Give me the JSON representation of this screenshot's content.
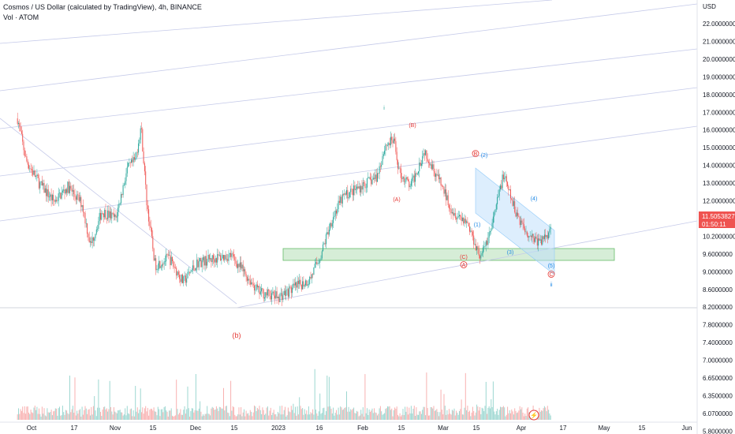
{
  "header": {
    "title": "Cosmos / US Dollar (calculated by TradingView), 4h, BINANCE",
    "volume_label": "Vol · ATOM"
  },
  "currency": "USD",
  "price_badge": {
    "price": "11.5053827",
    "countdown": "01:50:11",
    "color": "#ef5350"
  },
  "colors": {
    "up": "#26a69a",
    "down": "#ef5350",
    "channel": "#c5cae9",
    "zone": "#a5d6a7",
    "wave_red": "#e53935",
    "wave_blue": "#1e88e5"
  },
  "chart_data": {
    "type": "candlestick",
    "price_axis_labels": [
      "22.0000000",
      "21.0000000",
      "20.0000000",
      "19.0000000",
      "18.0000000",
      "17.0000000",
      "16.0000000",
      "15.0000000",
      "14.0000000",
      "13.0000000",
      "12.0000000",
      "10.8000000",
      "10.2000000",
      "9.6000000",
      "9.0000000",
      "8.6000000",
      "8.2000000",
      "7.8000000",
      "7.4000000",
      "7.0000000",
      "6.6500000",
      "6.3500000",
      "6.0700000",
      "5.8000000"
    ],
    "time_axis_labels": [
      "Oct",
      "17",
      "Nov",
      "15",
      "Dec",
      "15",
      "2023",
      "16",
      "Feb",
      "15",
      "Mar",
      "15",
      "Apr",
      "17",
      "May",
      "15",
      "Jun"
    ],
    "wave_labels": [
      {
        "text": "i",
        "color": "#26a69a"
      },
      {
        "text": "(B)",
        "color": "#e53935"
      },
      {
        "text": "B",
        "color": "#e53935",
        "circled": true
      },
      {
        "text": "(2)",
        "color": "#1e88e5"
      },
      {
        "text": "(A)",
        "color": "#e53935"
      },
      {
        "text": "(1)",
        "color": "#1e88e5"
      },
      {
        "text": "(4)",
        "color": "#1e88e5"
      },
      {
        "text": "(3)",
        "color": "#1e88e5"
      },
      {
        "text": "(C)",
        "color": "#e53935"
      },
      {
        "text": "A",
        "color": "#e53935",
        "circled": true
      },
      {
        "text": "(5)",
        "color": "#1e88e5"
      },
      {
        "text": "C",
        "color": "#e53935",
        "circled": true
      },
      {
        "text": "ii",
        "color": "#1e88e5"
      },
      {
        "text": "(b)",
        "color": "#e53935"
      }
    ],
    "price_path": [
      {
        "date": "2022-09-26",
        "price": 16.0
      },
      {
        "date": "2022-09-29",
        "price": 14.3
      },
      {
        "date": "2022-10-04",
        "price": 13.3
      },
      {
        "date": "2022-10-09",
        "price": 12.6
      },
      {
        "date": "2022-10-14",
        "price": 13.2
      },
      {
        "date": "2022-10-19",
        "price": 12.5
      },
      {
        "date": "2022-10-22",
        "price": 10.8
      },
      {
        "date": "2022-10-26",
        "price": 12.2
      },
      {
        "date": "2022-10-31",
        "price": 11.9
      },
      {
        "date": "2022-11-04",
        "price": 13.9
      },
      {
        "date": "2022-11-07",
        "price": 14.3
      },
      {
        "date": "2022-11-09",
        "price": 15.7
      },
      {
        "date": "2022-11-11",
        "price": 12.6
      },
      {
        "date": "2022-11-14",
        "price": 10.0
      },
      {
        "date": "2022-11-19",
        "price": 10.3
      },
      {
        "date": "2022-11-24",
        "price": 9.3
      },
      {
        "date": "2022-11-29",
        "price": 10.1
      },
      {
        "date": "2022-12-06",
        "price": 10.3
      },
      {
        "date": "2022-12-11",
        "price": 10.4
      },
      {
        "date": "2022-12-15",
        "price": 9.8
      },
      {
        "date": "2022-12-21",
        "price": 8.9
      },
      {
        "date": "2022-12-28",
        "price": 8.7
      },
      {
        "date": "2023-01-03",
        "price": 9.1
      },
      {
        "date": "2023-01-08",
        "price": 9.4
      },
      {
        "date": "2023-01-12",
        "price": 10.4
      },
      {
        "date": "2023-01-16",
        "price": 11.9
      },
      {
        "date": "2023-01-20",
        "price": 12.8
      },
      {
        "date": "2023-01-26",
        "price": 13.2
      },
      {
        "date": "2023-02-01",
        "price": 13.6
      },
      {
        "date": "2023-02-04",
        "price": 14.9
      },
      {
        "date": "2023-02-07",
        "price": 15.1
      },
      {
        "date": "2023-02-09",
        "price": 13.8
      },
      {
        "date": "2023-02-13",
        "price": 13.2
      },
      {
        "date": "2023-02-18",
        "price": 14.7
      },
      {
        "date": "2023-02-23",
        "price": 13.5
      },
      {
        "date": "2023-02-28",
        "price": 12.2
      },
      {
        "date": "2023-03-05",
        "price": 11.8
      },
      {
        "date": "2023-03-10",
        "price": 10.3
      },
      {
        "date": "2023-03-14",
        "price": 11.6
      },
      {
        "date": "2023-03-18",
        "price": 13.7
      },
      {
        "date": "2023-03-22",
        "price": 12.3
      },
      {
        "date": "2023-03-26",
        "price": 11.4
      },
      {
        "date": "2023-03-31",
        "price": 10.9
      },
      {
        "date": "2023-04-04",
        "price": 11.5
      }
    ]
  }
}
